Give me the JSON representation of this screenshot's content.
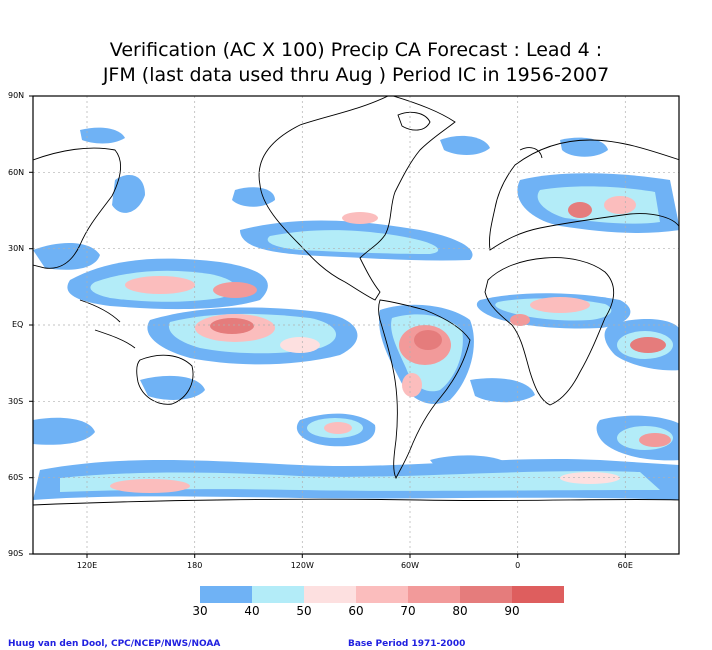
{
  "title": {
    "line1": "Verification (AC X 100) Precip CA Forecast : Lead 4 :",
    "line2": "JFM (last data used thru Aug ) Period IC in 1956-2007"
  },
  "axes": {
    "lat_labels": [
      "90N",
      "60N",
      "30N",
      "EQ",
      "30S",
      "60S",
      "90S"
    ],
    "lon_labels": [
      "120E",
      "180",
      "120W",
      "60W",
      "0",
      "60E"
    ]
  },
  "legend": {
    "labels": [
      "30",
      "40",
      "50",
      "60",
      "70",
      "80",
      "90"
    ],
    "colors": [
      "#6fb2f5",
      "#b3ecf8",
      "#fde0e0",
      "#fbbdbd",
      "#f29a9a",
      "#e57c7c",
      "#de5e5e"
    ]
  },
  "footer": {
    "credit": "Huug van den Dool, CPC/NCEP/NWS/NOAA",
    "base_period": "Base Period 1971-2000"
  }
}
